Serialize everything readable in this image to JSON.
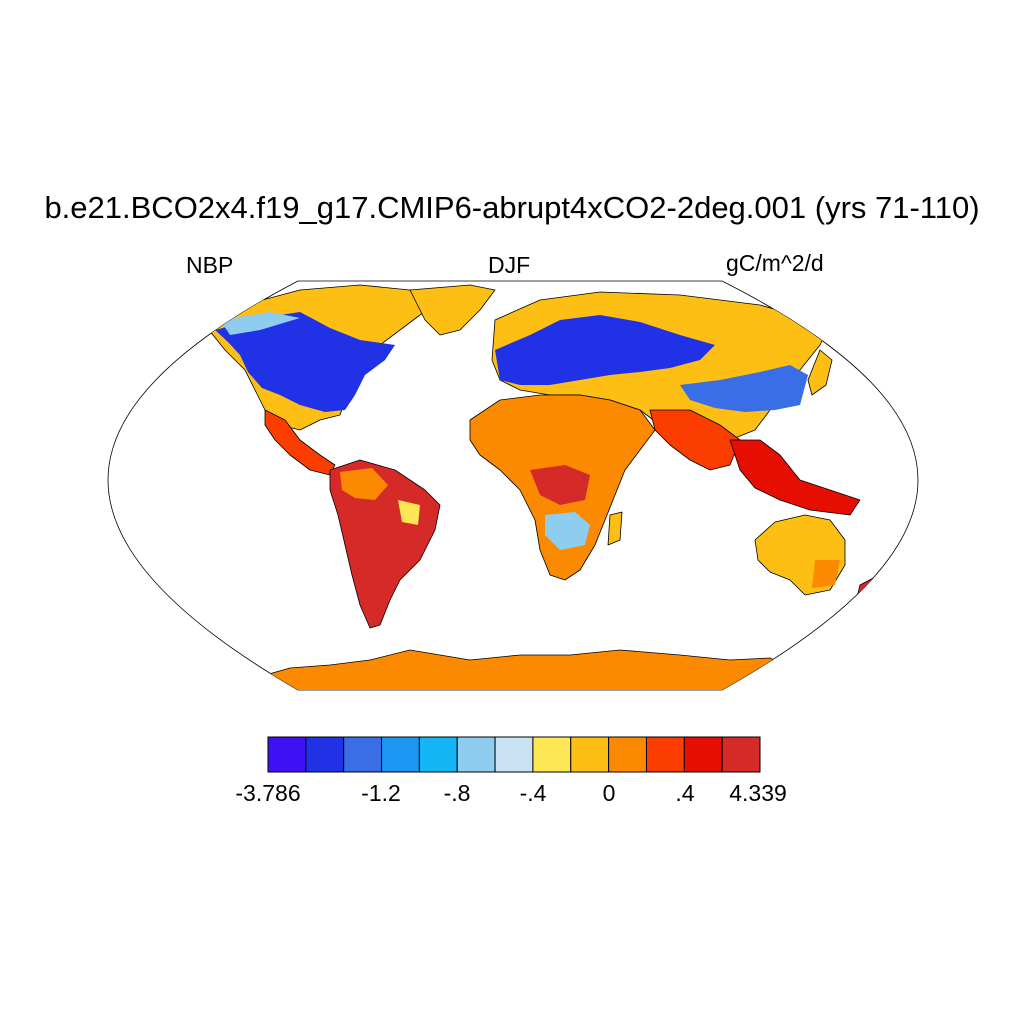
{
  "title": "b.e21.BCO2x4.f19_g17.CMIP6-abrupt4xCO2-2deg.001 (yrs 71-110)",
  "subtitle_left": "NBP",
  "subtitle_center": "DJF",
  "subtitle_right": "gC/m^2/d",
  "colorbar": {
    "colors": [
      "#3f12f5",
      "#2031e6",
      "#3a6ee6",
      "#1b96f2",
      "#14b6f5",
      "#8ecdf0",
      "#c9e3f5",
      "#fde755",
      "#fdbf14",
      "#fb8a00",
      "#fc3d00",
      "#e60e00",
      "#d62a28"
    ],
    "tick_labels": [
      "-3.786",
      "-1.2",
      "-.8",
      "-.4",
      "0",
      ".4",
      "4.339"
    ]
  },
  "map_colors": {
    "ocean": "#ffffff",
    "border": "#000000",
    "strong_negative": "#2031e6",
    "negative": "#3a6ee6",
    "weak_negative": "#8ecdf0",
    "neutral": "#fde755",
    "weak_positive": "#fdbf14",
    "positive": "#fb8a00",
    "strong_positive": "#d62a28"
  }
}
